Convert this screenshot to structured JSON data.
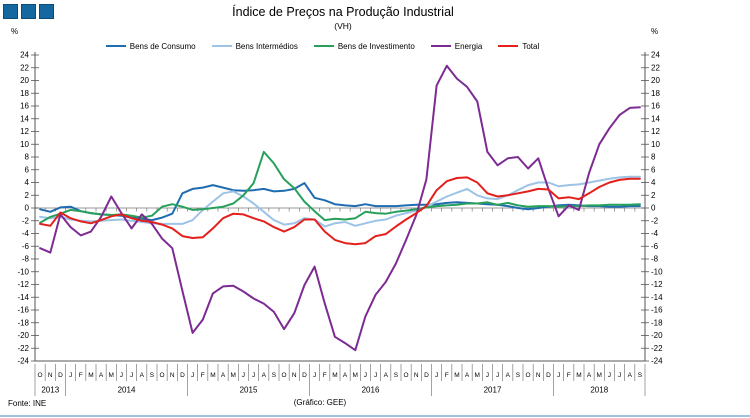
{
  "header": {
    "title": "Índice de Preços na Produção Industrial",
    "subtitle": "(VH)"
  },
  "axes": {
    "unit_left": "%",
    "unit_right": "%"
  },
  "footer": {
    "source": "Fonte: INE",
    "credit": "(Gráfico: GEE)"
  },
  "colors": {
    "logo_square": "#15689F",
    "bottom_rule": "#9FC2DF",
    "zero_gridline": "#999999",
    "axis": "#555555"
  },
  "chart_data": {
    "type": "line",
    "title": "Índice de Preços na Produção Industrial",
    "subtitle": "(VH)",
    "ylabel": "%",
    "ylim": [
      -24,
      24
    ],
    "ytick_step": 2,
    "grid": "zero-line-only",
    "legend_position": "top",
    "x_range": "Oct 2013 - Sep 2018 (monthly)",
    "month_labels": [
      "O",
      "N",
      "D",
      "J",
      "F",
      "M",
      "A",
      "M",
      "J",
      "J",
      "A",
      "S",
      "O",
      "N",
      "D",
      "J",
      "F",
      "M",
      "A",
      "M",
      "J",
      "J",
      "A",
      "S",
      "O",
      "N",
      "D",
      "J",
      "F",
      "M",
      "A",
      "M",
      "J",
      "J",
      "A",
      "S",
      "O",
      "N",
      "D",
      "J",
      "F",
      "M",
      "A",
      "M",
      "J",
      "J",
      "A",
      "S",
      "O",
      "N",
      "D",
      "J",
      "F",
      "M",
      "A",
      "M",
      "J",
      "J",
      "A",
      "S"
    ],
    "years": [
      {
        "label": "2013",
        "start": 0,
        "end": 2
      },
      {
        "label": "2014",
        "start": 3,
        "end": 14
      },
      {
        "label": "2015",
        "start": 15,
        "end": 26
      },
      {
        "label": "2016",
        "start": 27,
        "end": 38
      },
      {
        "label": "2017",
        "start": 39,
        "end": 50
      },
      {
        "label": "2018",
        "start": 51,
        "end": 59
      }
    ],
    "series": [
      {
        "name": "Bens de Consumo",
        "color": "#1F6CB0",
        "values": [
          -0.2,
          -0.6,
          0.1,
          0.2,
          -0.5,
          -0.8,
          -1.0,
          -1.1,
          -1.2,
          -1.5,
          -1.7,
          -1.9,
          -1.5,
          -0.9,
          2.3,
          3.0,
          3.2,
          3.6,
          3.2,
          2.8,
          2.7,
          2.8,
          3.0,
          2.6,
          2.7,
          3.0,
          3.9,
          1.6,
          1.2,
          0.6,
          0.4,
          0.3,
          0.6,
          0.3,
          0.3,
          0.3,
          0.4,
          0.5,
          0.5,
          0.6,
          0.8,
          0.9,
          0.8,
          0.7,
          0.6,
          0.5,
          0.3,
          0.0,
          -0.2,
          0.0,
          0.2,
          0.4,
          0.5,
          0.4,
          0.3,
          0.3,
          0.2,
          0.2,
          0.3,
          0.3
        ]
      },
      {
        "name": "Bens Intermédios",
        "color": "#9DC3E6",
        "values": [
          -1.4,
          -1.6,
          -1.4,
          -1.8,
          -2.0,
          -2.1,
          -2.0,
          -1.9,
          -1.8,
          -2.0,
          -2.2,
          -2.4,
          -2.5,
          -2.5,
          -2.5,
          -1.9,
          -0.3,
          1.0,
          2.3,
          2.6,
          1.8,
          0.7,
          -0.6,
          -1.9,
          -2.6,
          -2.4,
          -1.6,
          -1.8,
          -2.9,
          -2.4,
          -2.2,
          -2.8,
          -2.4,
          -2.0,
          -1.8,
          -1.2,
          -0.8,
          -0.4,
          0.2,
          1.0,
          1.8,
          2.4,
          3.0,
          2.0,
          1.5,
          1.4,
          2.0,
          2.8,
          3.6,
          4.0,
          4.0,
          3.4,
          3.6,
          3.7,
          4.0,
          4.3,
          4.6,
          4.8,
          4.9,
          4.9
        ]
      },
      {
        "name": "Bens de Investimento",
        "color": "#26A05A",
        "values": [
          -2.3,
          -1.4,
          -0.9,
          -0.3,
          -0.5,
          -0.8,
          -1.0,
          -1.1,
          -1.0,
          -1.2,
          -1.5,
          -1.2,
          0.2,
          0.6,
          0.2,
          -0.3,
          -0.2,
          0.0,
          0.2,
          0.7,
          2.0,
          3.9,
          8.8,
          7.0,
          4.5,
          3.1,
          1.0,
          -0.5,
          -1.9,
          -1.7,
          -1.8,
          -1.6,
          -0.6,
          -0.8,
          -0.9,
          -0.6,
          -0.4,
          -0.2,
          0.1,
          0.3,
          0.4,
          0.5,
          0.7,
          0.7,
          0.9,
          0.5,
          0.8,
          0.4,
          0.2,
          0.3,
          0.3,
          0.2,
          0.3,
          0.3,
          0.4,
          0.4,
          0.5,
          0.5,
          0.5,
          0.6
        ]
      },
      {
        "name": "Energia",
        "color": "#7D2B93",
        "values": [
          -6.3,
          -7.0,
          -1.0,
          -3.0,
          -4.3,
          -3.7,
          -1.4,
          1.8,
          -0.8,
          -3.2,
          -1.0,
          -2.5,
          -4.8,
          -6.3,
          -13.0,
          -19.6,
          -17.5,
          -13.4,
          -12.3,
          -12.2,
          -13.1,
          -14.2,
          -15.0,
          -16.3,
          -19.0,
          -16.5,
          -12.1,
          -9.2,
          -15.0,
          -20.2,
          -21.2,
          -22.3,
          -17.0,
          -13.6,
          -11.6,
          -8.7,
          -5.0,
          -1.1,
          4.5,
          19.2,
          22.3,
          20.3,
          19.0,
          16.7,
          8.8,
          6.7,
          7.8,
          8.0,
          6.2,
          7.8,
          3.0,
          -1.3,
          0.4,
          -0.3,
          5.5,
          10.0,
          12.5,
          14.6,
          15.7,
          15.8
        ]
      },
      {
        "name": "Total",
        "color": "#E3201B",
        "values": [
          -2.5,
          -2.8,
          -0.7,
          -1.6,
          -2.1,
          -2.4,
          -1.9,
          -1.3,
          -1.0,
          -1.6,
          -2.0,
          -2.2,
          -2.6,
          -3.2,
          -4.4,
          -4.7,
          -4.6,
          -3.2,
          -1.6,
          -0.9,
          -1.0,
          -1.6,
          -2.1,
          -3.0,
          -3.7,
          -3.0,
          -1.8,
          -1.8,
          -3.7,
          -5.0,
          -5.5,
          -5.7,
          -5.5,
          -4.4,
          -4.1,
          -2.9,
          -1.8,
          -0.8,
          0.3,
          2.8,
          4.2,
          4.7,
          4.8,
          4.0,
          2.3,
          1.8,
          2.0,
          2.3,
          2.6,
          3.0,
          2.9,
          1.5,
          1.7,
          1.4,
          2.3,
          3.3,
          4.0,
          4.4,
          4.6,
          4.6
        ]
      }
    ]
  }
}
